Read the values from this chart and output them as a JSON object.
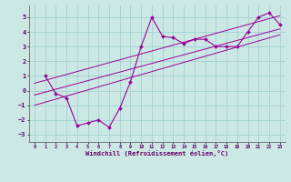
{
  "xlabel": "Windchill (Refroidissement éolien,°C)",
  "bg_color": "#cce8e4",
  "line_color": "#990099",
  "grid_color": "#99cccc",
  "xlim": [
    -0.5,
    23.5
  ],
  "ylim": [
    -3.5,
    5.8
  ],
  "xticks": [
    0,
    1,
    2,
    3,
    4,
    5,
    6,
    7,
    8,
    9,
    10,
    11,
    12,
    13,
    14,
    15,
    16,
    17,
    18,
    19,
    20,
    21,
    22,
    23
  ],
  "yticks": [
    -3,
    -2,
    -1,
    0,
    1,
    2,
    3,
    4,
    5
  ],
  "main_x": [
    1,
    2,
    3,
    4,
    5,
    6,
    7,
    8,
    9,
    10,
    11,
    12,
    13,
    14,
    15,
    16,
    17,
    18,
    19,
    20,
    21,
    22,
    23
  ],
  "main_y": [
    1.0,
    -0.2,
    -0.5,
    -2.4,
    -2.2,
    -2.0,
    -2.5,
    -1.2,
    0.6,
    3.0,
    5.0,
    3.7,
    3.6,
    3.2,
    3.5,
    3.5,
    3.0,
    3.0,
    3.0,
    4.0,
    5.0,
    5.3,
    4.5
  ],
  "line1_x": [
    0,
    23
  ],
  "line1_y": [
    -0.3,
    4.2
  ],
  "line2_x": [
    0,
    23
  ],
  "line2_y": [
    0.5,
    5.1
  ],
  "line3_x": [
    0,
    23
  ],
  "line3_y": [
    -1.0,
    3.8
  ]
}
